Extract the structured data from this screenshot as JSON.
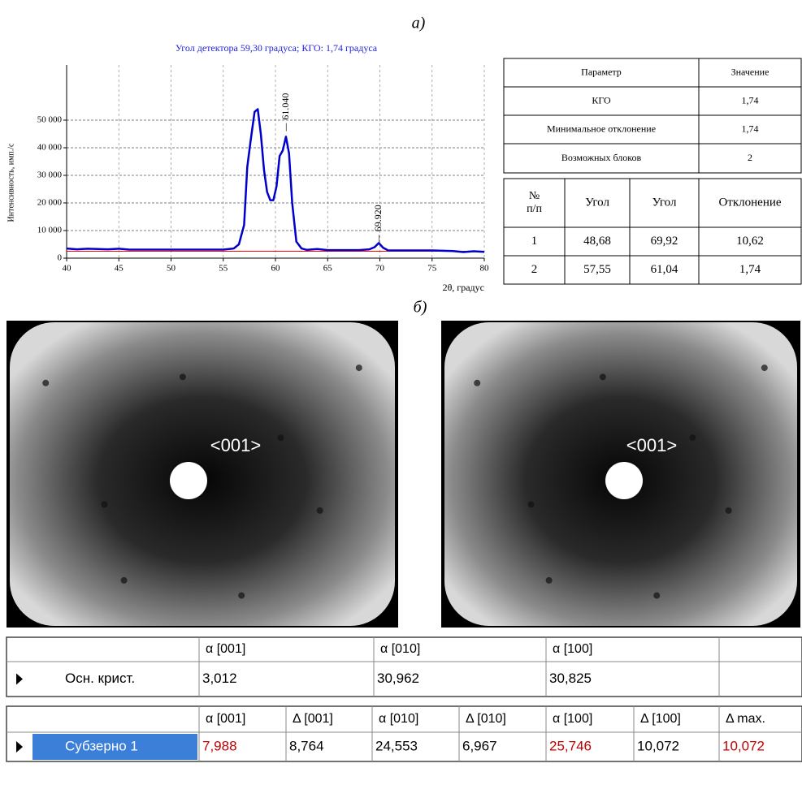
{
  "labels": {
    "a": "а)",
    "b": "б)"
  },
  "chart_data": {
    "type": "line",
    "title": "Угол  детектора 59,30 градуса; КГО: 1,74 градуса",
    "xlabel": "2θ, градус",
    "ylabel": "Интенсивность, имп./с",
    "x": [
      40,
      41,
      42,
      43,
      44,
      45,
      46,
      47,
      48,
      49,
      50,
      51,
      52,
      53,
      54,
      55,
      56,
      56.5,
      57,
      57.3,
      57.6,
      58,
      58.3,
      58.6,
      58.9,
      59.2,
      59.5,
      59.8,
      60.1,
      60.4,
      60.7,
      61,
      61.3,
      61.6,
      62,
      62.5,
      63,
      64,
      65,
      68,
      69,
      69.5,
      69.9,
      70.3,
      70.8,
      72,
      75,
      77,
      78,
      79,
      80
    ],
    "values": [
      3500,
      3200,
      3400,
      3300,
      3200,
      3400,
      3100,
      3100,
      3100,
      3100,
      3100,
      3100,
      3100,
      3100,
      3100,
      3100,
      3500,
      5000,
      12000,
      33000,
      42000,
      53000,
      54000,
      45000,
      32000,
      24000,
      21000,
      21000,
      26000,
      37000,
      39000,
      44000,
      38000,
      20000,
      6000,
      3500,
      3000,
      3300,
      2900,
      2900,
      3200,
      4000,
      5500,
      3800,
      2800,
      2800,
      2800,
      2600,
      2200,
      2500,
      2300
    ],
    "color": "#0000cc",
    "threshold": 2500,
    "threshold_color": "#ff0000",
    "annotations": [
      {
        "label": "61.040",
        "x": 61.04,
        "y": 46000
      },
      {
        "label": "69.920",
        "x": 69.92,
        "y": 5500
      }
    ],
    "xlim": [
      40,
      80
    ],
    "xticks": [
      40,
      45,
      50,
      55,
      60,
      65,
      70,
      75,
      80
    ],
    "ylim": [
      0,
      70000
    ],
    "yticks": [
      0,
      {
        "value": 10000,
        "label": "10 000"
      },
      {
        "value": 20000,
        "label": "20 000"
      },
      {
        "value": 30000,
        "label": "30 000"
      },
      {
        "value": 40000,
        "label": "40 000"
      },
      {
        "value": 50000,
        "label": "50 000"
      }
    ],
    "grid": true
  },
  "table1": {
    "header": [
      "Параметр",
      "Значение"
    ],
    "rows": [
      [
        "КГО",
        "1,74"
      ],
      [
        "Минимальное отклонение",
        "1,74"
      ],
      [
        "Возможных блоков",
        "2"
      ]
    ]
  },
  "table2": {
    "header": [
      "№ п/п",
      "Угол",
      "Угол",
      "Отклонение"
    ],
    "rows": [
      [
        "1",
        "48,68",
        "69,92",
        "10,62"
      ],
      [
        "2",
        "57,55",
        "61,04",
        "1,74"
      ]
    ]
  },
  "images": [
    {
      "label": "<001>"
    },
    {
      "label": "<001>"
    }
  ],
  "grid1": {
    "columns": [
      "α  [001]",
      "α  [010]",
      "α  [100]"
    ],
    "row_label": "Осн. крист.",
    "values": [
      "3,012",
      "30,962",
      "30,825"
    ]
  },
  "grid2": {
    "columns": [
      "α  [001]",
      "Δ [001]",
      "α  [010]",
      "Δ [010]",
      "α  [100]",
      "Δ [100]",
      "Δ max."
    ],
    "row_label": "Субзерно 1",
    "values": [
      "7,988",
      "8,764",
      "24,553",
      "6,967",
      "25,746",
      "10,072",
      "10,072"
    ],
    "value_colors": [
      "#c00000",
      "#000000",
      "#000000",
      "#000000",
      "#c00000",
      "#000000",
      "#c00000"
    ]
  }
}
